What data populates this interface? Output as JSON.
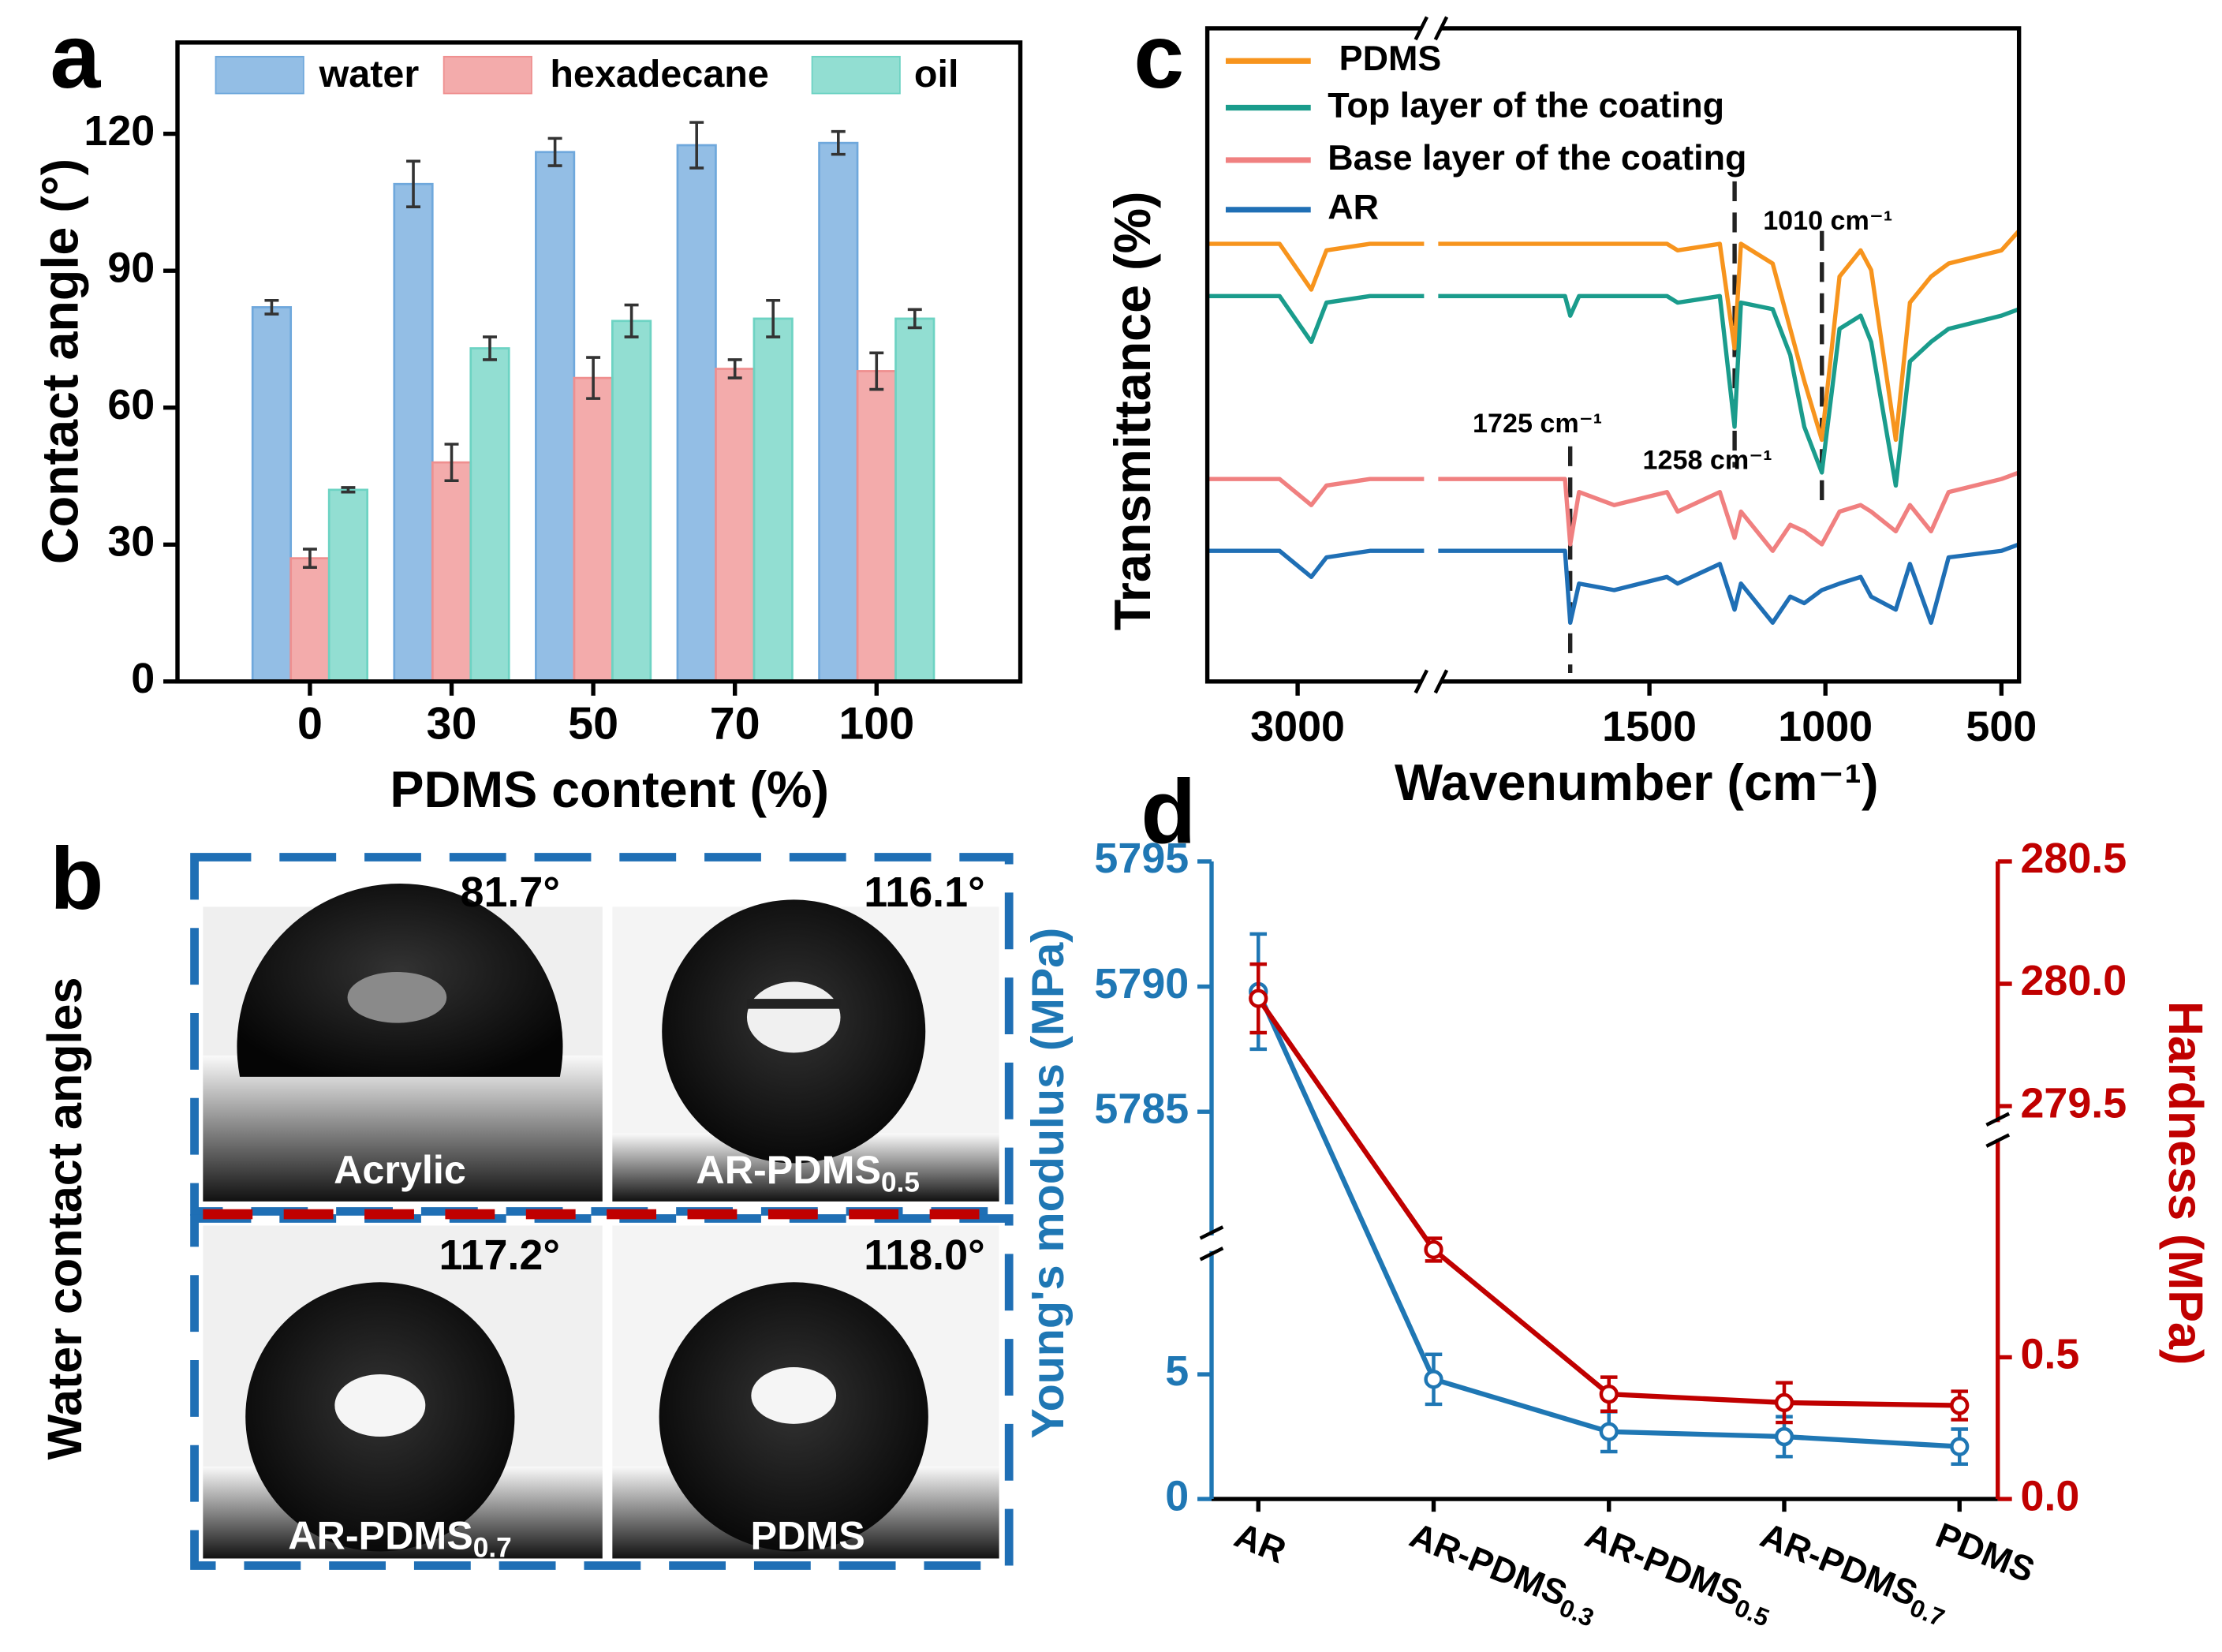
{
  "chart_data": [
    {
      "type": "bar",
      "panel": "a",
      "xlabel": "PDMS content (%)",
      "ylabel": "Contact angle (°)",
      "categories": [
        "0",
        "30",
        "50",
        "70",
        "100"
      ],
      "series": [
        {
          "name": "water",
          "color": "#6fa8dc",
          "values": [
            82,
            109,
            116,
            117.5,
            118
          ],
          "errors": [
            1.5,
            5,
            3,
            5,
            2.5
          ]
        },
        {
          "name": "hexadecane",
          "color": "#ef8f8f",
          "values": [
            27,
            48,
            66.5,
            68.5,
            68
          ],
          "errors": [
            2,
            4,
            4.5,
            2,
            4
          ]
        },
        {
          "name": "oil",
          "color": "#6dd3c3",
          "values": [
            42,
            73,
            79,
            79.5,
            79.5
          ],
          "errors": [
            0.5,
            2.5,
            3.5,
            4,
            2
          ]
        }
      ],
      "ylim": [
        0,
        140
      ],
      "yticks": [
        0,
        30,
        60,
        90,
        120
      ],
      "legend": "top"
    },
    {
      "type": "line",
      "panel": "c",
      "xlabel": "Wavenumber (cm⁻¹)",
      "ylabel": "Transmittance (%)",
      "x": [
        3250,
        3050,
        2962,
        2920,
        2800,
        2650,
        2400,
        2100,
        1800,
        1740,
        1725,
        1700,
        1600,
        1450,
        1420,
        1300,
        1258,
        1240,
        1150,
        1100,
        1060,
        1010,
        960,
        900,
        870,
        800,
        760,
        700,
        650,
        500,
        450
      ],
      "xlim": [
        3250,
        450
      ],
      "xbreak": [
        2650,
        2100
      ],
      "xticks": [
        3000,
        1500,
        1000,
        500
      ],
      "ylim": [
        0,
        100
      ],
      "series": [
        {
          "name": "PDMS",
          "color": "#f7941d",
          "values": [
            67,
            67,
            60,
            66,
            67,
            67,
            null,
            67,
            67,
            67,
            67,
            67,
            67,
            67,
            66,
            67,
            51,
            67,
            64,
            54,
            46,
            37,
            62,
            66,
            63,
            37,
            58,
            62,
            64,
            66,
            69
          ]
        },
        {
          "name": "Top layer of the coating",
          "color": "#1a9c8c",
          "values": [
            59,
            59,
            52,
            58,
            59,
            59,
            null,
            59,
            59,
            59,
            56,
            59,
            59,
            59,
            58,
            59,
            39,
            58,
            57,
            50,
            39,
            32,
            54,
            56,
            52,
            30,
            49,
            52,
            54,
            56,
            57
          ]
        },
        {
          "name": "Base layer of the coating",
          "color": "#f08080",
          "values": [
            31,
            31,
            27,
            30,
            31,
            31,
            null,
            31,
            31,
            31,
            21,
            29,
            27,
            29,
            26,
            29,
            22,
            26,
            20,
            24,
            23,
            21,
            26,
            27,
            26,
            23,
            27,
            23,
            29,
            31,
            32
          ]
        },
        {
          "name": "AR",
          "color": "#1f6fb5",
          "values": [
            20,
            20,
            16,
            19,
            20,
            20,
            null,
            20,
            20,
            20,
            9,
            15,
            14,
            16,
            15,
            18,
            11,
            15,
            9,
            13,
            12,
            14,
            15,
            16,
            13,
            11,
            18,
            9,
            19,
            20,
            21
          ]
        }
      ],
      "annotations": [
        {
          "text": "1725 cm⁻¹",
          "x": 1725
        },
        {
          "text": "1258 cm⁻¹",
          "x": 1258
        },
        {
          "text": "1010 cm⁻¹",
          "x": 1010
        }
      ],
      "legend": "upper left"
    },
    {
      "type": "line",
      "panel": "d",
      "ylabel": "Young's modulus (MPa)",
      "y2label": "Hardness (MPa)",
      "categories": [
        "AR",
        "AR-PDMS",
        "AR-PDMS",
        "AR-PDMS",
        "PDMS"
      ],
      "category_subscripts": [
        null,
        "0.3",
        "0.5",
        "0.7",
        null
      ],
      "series": [
        {
          "color": "#1f77b4",
          "values": [
            5789.8,
            4.8,
            2.7,
            2.5,
            2.1
          ],
          "errors": [
            2.3,
            1.0,
            0.8,
            0.8,
            0.7
          ]
        },
        {
          "color": "#c00000",
          "axis": "y2",
          "values": [
            279.94,
            0.88,
            0.37,
            0.34,
            0.33
          ],
          "errors": [
            0.14,
            0.04,
            0.06,
            0.07,
            0.05
          ]
        }
      ],
      "ylim": [
        0,
        5795
      ],
      "ybreak": [
        10,
        5780
      ],
      "yticks": [
        0,
        5,
        5785,
        5790,
        5795
      ],
      "y2lim": [
        0,
        280.5
      ],
      "y2break": [
        1.3,
        279.4
      ],
      "y2ticks": [
        {
          "value": 0,
          "label": "0.0"
        },
        0.5,
        279.5,
        {
          "value": 280,
          "label": "280.0"
        },
        280.5
      ]
    }
  ],
  "photos": {
    "panel": "b",
    "ylabel": "Water contact angles",
    "items": [
      {
        "angle": "81.7°",
        "name": "Acrylic"
      },
      {
        "angle": "116.1°",
        "name": "AR-PDMS",
        "subscript": "0.5"
      },
      {
        "angle": "117.2°",
        "name": "AR-PDMS",
        "subscript": "0.7"
      },
      {
        "angle": "118.0°",
        "name": "PDMS"
      }
    ]
  }
}
